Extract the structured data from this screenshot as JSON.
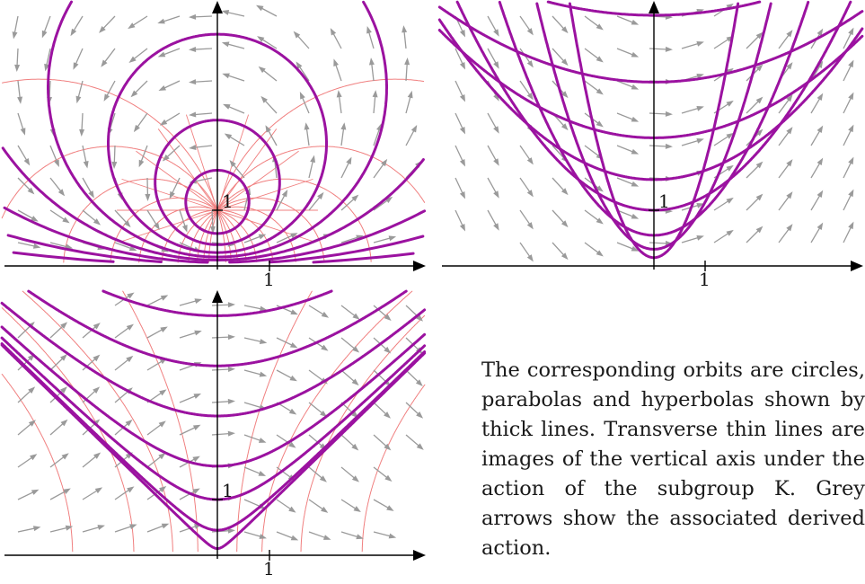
{
  "figure": {
    "caption": "The corresponding orbits are circles, parabolas and hyperbolas shown by thick lines. Transverse thin lines are images of the vertical axis under the action of the subgroup K. Grey arrows show the associated derived action.",
    "colors": {
      "orbit": "#9b12a0",
      "transverse": "#f07f7f",
      "arrow": "#9a9a9a",
      "axis": "#000000"
    },
    "tick_label": "1"
  },
  "chart_data": [
    {
      "type": "line",
      "subtype": "elliptic",
      "orbits": "circles",
      "x_tick_label": "1",
      "y_tick_label": "1",
      "x_tick": 1,
      "y_tick": 1
    },
    {
      "type": "line",
      "subtype": "parabolic",
      "orbits": "parabolas",
      "x_tick_label": "1",
      "y_tick_label": "1",
      "x_tick": 1,
      "y_tick": 1
    },
    {
      "type": "line",
      "subtype": "hyperbolic",
      "orbits": "hyperbolas",
      "x_tick_label": "1",
      "y_tick_label": "1",
      "x_tick": 1,
      "y_tick": 1
    }
  ]
}
